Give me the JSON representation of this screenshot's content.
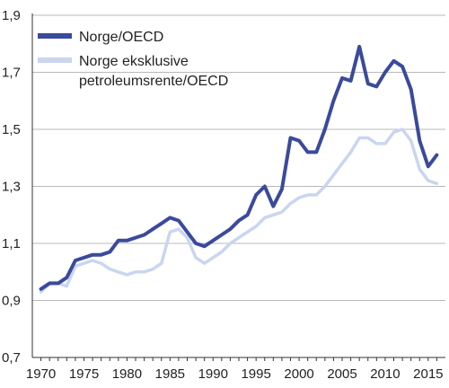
{
  "chart_data": {
    "type": "line",
    "title": "",
    "xlabel": "",
    "ylabel": "",
    "xlim": [
      1969,
      2017
    ],
    "ylim": [
      0.7,
      1.9
    ],
    "x_ticks": [
      1970,
      1975,
      1980,
      1985,
      1990,
      1995,
      2000,
      2005,
      2010,
      2015
    ],
    "x_tick_labels": [
      "1970",
      "1975",
      "1980",
      "1985",
      "1990",
      "1995",
      "2000",
      "2005",
      "2010",
      "2015"
    ],
    "y_ticks": [
      0.7,
      0.9,
      1.1,
      1.3,
      1.5,
      1.7,
      1.9
    ],
    "y_tick_labels": [
      "0,7",
      "0,9",
      "1,1",
      "1,3",
      "1,5",
      "1,7",
      "1,9"
    ],
    "grid": "horizontal",
    "legend_position": "top-left",
    "legend": [
      "Norge/OECD",
      "Norge eksklusive\npetroleumsrente/OECD"
    ],
    "x": [
      1970,
      1971,
      1972,
      1973,
      1974,
      1975,
      1976,
      1977,
      1978,
      1979,
      1980,
      1981,
      1982,
      1983,
      1984,
      1985,
      1986,
      1987,
      1988,
      1989,
      1990,
      1991,
      1992,
      1993,
      1994,
      1995,
      1996,
      1997,
      1998,
      1999,
      2000,
      2001,
      2002,
      2003,
      2004,
      2005,
      2006,
      2007,
      2008,
      2009,
      2010,
      2011,
      2012,
      2013,
      2014,
      2015,
      2016
    ],
    "series": [
      {
        "name": "Norge/OECD",
        "color": "#3a4a9c",
        "values": [
          0.94,
          0.96,
          0.96,
          0.98,
          1.04,
          1.05,
          1.06,
          1.06,
          1.07,
          1.11,
          1.11,
          1.12,
          1.13,
          1.15,
          1.17,
          1.19,
          1.18,
          1.14,
          1.1,
          1.09,
          1.11,
          1.13,
          1.15,
          1.18,
          1.2,
          1.27,
          1.3,
          1.23,
          1.29,
          1.47,
          1.46,
          1.42,
          1.42,
          1.5,
          1.6,
          1.68,
          1.67,
          1.79,
          1.66,
          1.65,
          1.7,
          1.74,
          1.72,
          1.64,
          1.46,
          1.37,
          1.41
        ]
      },
      {
        "name": "Norge eksklusive\npetroleumsrente/OECD",
        "color": "#c9d6ee",
        "values": [
          0.93,
          0.96,
          0.96,
          0.95,
          1.02,
          1.03,
          1.04,
          1.03,
          1.01,
          1.0,
          0.99,
          1.0,
          1.0,
          1.01,
          1.03,
          1.14,
          1.15,
          1.12,
          1.05,
          1.03,
          1.05,
          1.07,
          1.1,
          1.12,
          1.14,
          1.16,
          1.19,
          1.2,
          1.21,
          1.24,
          1.26,
          1.27,
          1.27,
          1.3,
          1.34,
          1.38,
          1.42,
          1.47,
          1.47,
          1.45,
          1.45,
          1.49,
          1.5,
          1.46,
          1.36,
          1.32,
          1.31
        ]
      }
    ]
  }
}
